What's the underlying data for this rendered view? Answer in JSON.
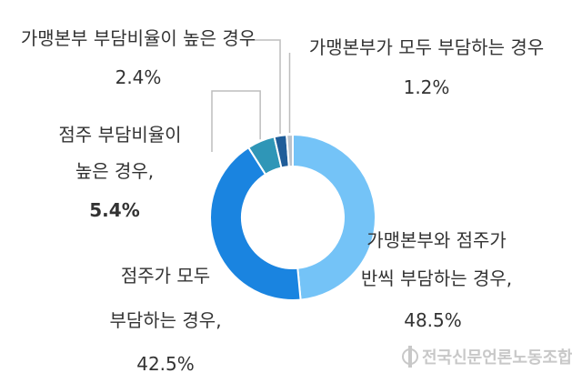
{
  "chart_data": {
    "type": "pie",
    "donut": true,
    "slices": [
      {
        "label": "가맹본부와 점주가 반씩 부담하는 경우,",
        "value": 48.5,
        "value_text": "48.5%",
        "color": "#74c3f7"
      },
      {
        "label": "점주가 모두 부담하는 경우,",
        "value": 42.5,
        "value_text": "42.5%",
        "color": "#1a84e0"
      },
      {
        "label": "점주 부담비율이 높은 경우,",
        "value": 5.4,
        "value_text": "5.4%",
        "color": "#2f96b7"
      },
      {
        "label": "가맹본부 부담비율이 높은 경우",
        "value": 2.4,
        "value_text": "2.4%",
        "color": "#1f5d99"
      },
      {
        "label": "가맹본부가 모두 부담하는 경우",
        "value": 1.2,
        "value_text": "1.2%",
        "color": "#b9c2cc"
      }
    ]
  },
  "watermark": {
    "text": "전국신문언론노동조합",
    "color": "#c8c8c8"
  }
}
